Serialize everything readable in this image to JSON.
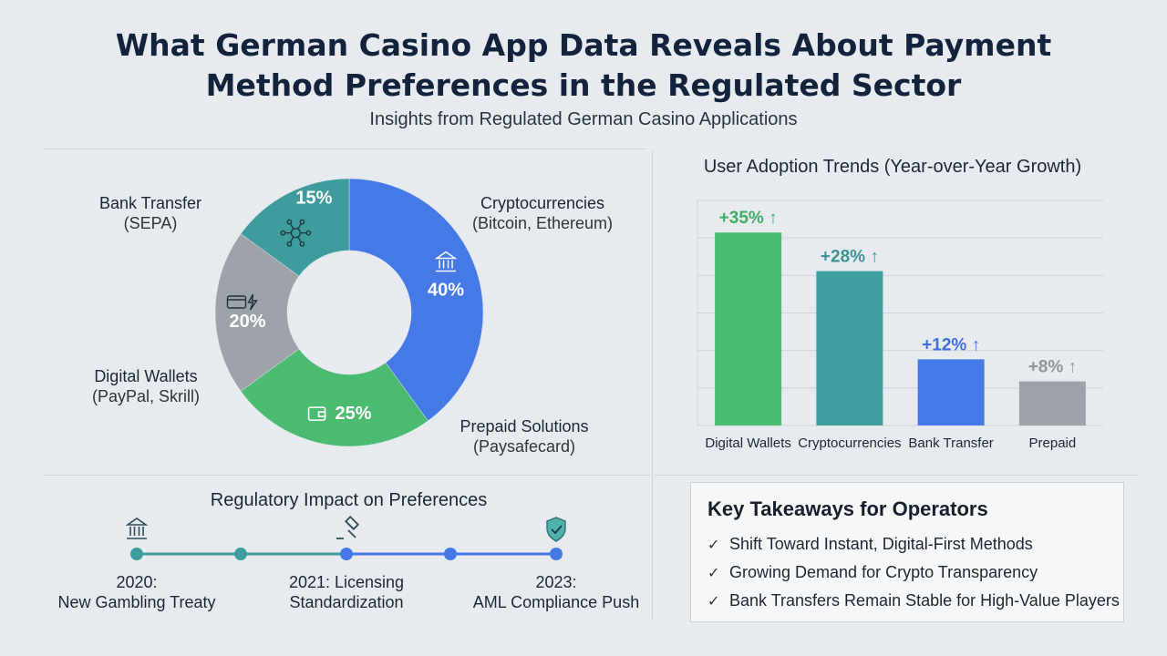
{
  "header": {
    "title_line1": "What German Casino App Data Reveals About Payment",
    "title_line2": "Method Preferences in the Regulated Sector",
    "subtitle": "Insights from Regulated German Casino Applications"
  },
  "chart_data": [
    {
      "type": "pie",
      "donut": true,
      "slices": [
        {
          "label": "Cryptocurrencies",
          "detail": "(Bitcoin, Ethereum)",
          "value": 40,
          "display": "40%",
          "color": "#4479e6"
        },
        {
          "label": "Prepaid Solutions",
          "detail": "(Paysafecard)",
          "value": 25,
          "display": "25%",
          "color": "#4cbb72"
        },
        {
          "label": "Digital Wallets",
          "detail": "(PayPal, Skrill)",
          "value": 20,
          "display": "20%",
          "color": "#9ea3a9"
        },
        {
          "label": "Bank Transfer",
          "detail": "(SEPA)",
          "value": 15,
          "display": "15%",
          "color": "#3f9c9c"
        }
      ]
    },
    {
      "type": "bar",
      "title": "User Adoption Trends (Year-over-Year Growth)",
      "categories": [
        "Digital Wallets",
        "Cryptocurrencies",
        "Bank Transfer",
        "Prepaid"
      ],
      "values": [
        35,
        28,
        12,
        8
      ],
      "labels": [
        "+35% ↑",
        "+28% ↑",
        "+12% ↑",
        "+8% ↑"
      ],
      "colors": [
        "#49bd6f",
        "#3f9e9e",
        "#4479e6",
        "#9ea3a9"
      ],
      "label_colors": [
        "#3fae63",
        "#3a9494",
        "#3f6fd8",
        "#8f959b"
      ],
      "grid": true
    }
  ],
  "regulatory": {
    "title": "Regulatory Impact on Preferences",
    "events": [
      {
        "year": "2020:",
        "text": "New Gambling Treaty"
      },
      {
        "year": "2021: Licensing",
        "text": "Standardization"
      },
      {
        "year": "2023:",
        "text": "AML Compliance Push"
      }
    ]
  },
  "takeaways": {
    "title": "Key Takeaways for Operators",
    "items": [
      "Shift Toward Instant, Digital-First Methods",
      "Growing Demand for Crypto Transparency",
      "Bank Transfers Remain Stable for High-Value Players"
    ]
  },
  "icons": {
    "bank": "bank-icon",
    "network": "network-icon",
    "card": "card-icon",
    "wallet": "wallet-icon",
    "gavel": "gavel-icon",
    "shield": "shield-check-icon"
  }
}
